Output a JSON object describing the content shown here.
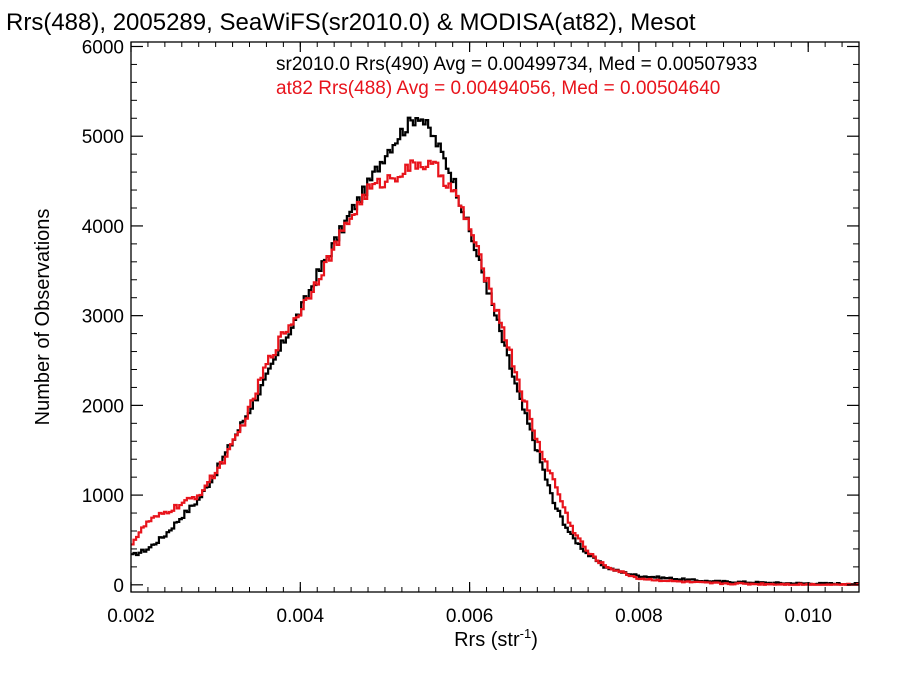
{
  "chart_data": {
    "type": "line",
    "title": "Rrs(488), 2005289, SeaWiFS(sr2010.0) & MODISA(at82), Mesot",
    "xlabel_main": "Rrs (str",
    "xlabel_sup": "-1",
    "xlabel_close": ")",
    "ylabel": "Number of Observations",
    "xlim": [
      0.002,
      0.0106
    ],
    "ylim": [
      -80,
      6050
    ],
    "x_ticks": [
      0.002,
      0.004,
      0.006,
      0.008,
      0.01
    ],
    "x_tick_labels": [
      "0.002",
      "0.004",
      "0.006",
      "0.008",
      "0.010"
    ],
    "y_ticks": [
      0,
      1000,
      2000,
      3000,
      4000,
      5000,
      6000
    ],
    "y_tick_labels": [
      "0",
      "1000",
      "2000",
      "3000",
      "4000",
      "5000",
      "6000"
    ],
    "grid": false,
    "legend_placement": "top-right",
    "x": [
      0.002,
      0.0022,
      0.0024,
      0.0026,
      0.0028,
      0.003,
      0.0032,
      0.0034,
      0.0036,
      0.0038,
      0.004,
      0.0042,
      0.0044,
      0.0046,
      0.0048,
      0.005,
      0.0052,
      0.0054,
      0.0056,
      0.0058,
      0.006,
      0.0062,
      0.0064,
      0.0066,
      0.0068,
      0.007,
      0.0072,
      0.0074,
      0.0076,
      0.0078,
      0.008,
      0.0084,
      0.0088,
      0.0092,
      0.0096,
      0.01,
      0.0106
    ],
    "series": [
      {
        "name": "sr2010.0 Rrs(490) Avg = 0.00499734, Med = 0.00507933",
        "color": "#000000",
        "values": [
          320,
          400,
          550,
          760,
          950,
          1250,
          1600,
          1950,
          2300,
          2700,
          3050,
          3450,
          3800,
          4150,
          4450,
          4800,
          5050,
          5250,
          4950,
          4550,
          3950,
          3350,
          2700,
          2050,
          1500,
          900,
          550,
          340,
          200,
          140,
          100,
          70,
          40,
          30,
          20,
          15,
          10
        ]
      },
      {
        "name": "at82 Rrs(488) Avg = 0.00494056, Med = 0.00504640",
        "color": "#e8141c",
        "values": [
          450,
          700,
          800,
          900,
          1000,
          1250,
          1550,
          1950,
          2450,
          2800,
          3050,
          3400,
          3750,
          4100,
          4400,
          4500,
          4600,
          4700,
          4650,
          4400,
          4000,
          3400,
          2850,
          2200,
          1600,
          1150,
          650,
          360,
          210,
          140,
          70,
          40,
          20,
          12,
          8,
          5,
          0
        ]
      }
    ]
  }
}
